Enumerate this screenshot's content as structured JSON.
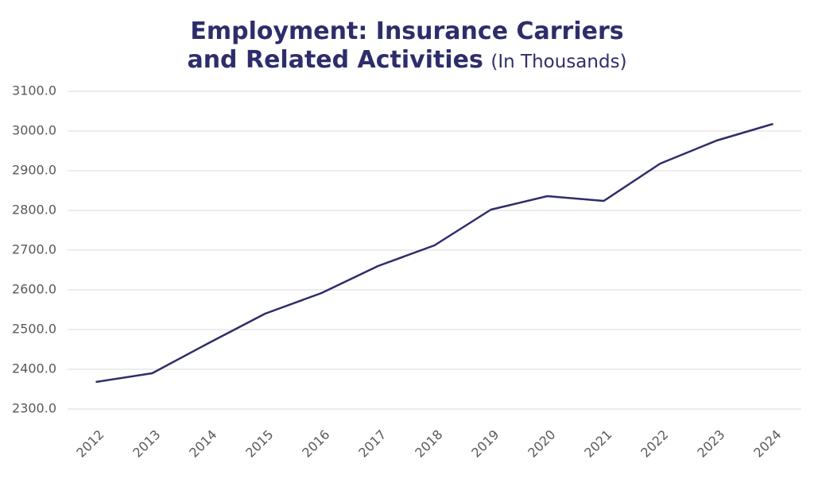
{
  "chart_data": {
    "type": "line",
    "title": "Employment: Insurance Carriers and Related Activities",
    "subtitle": "(In Thousands)",
    "categories": [
      "2012",
      "2013",
      "2014",
      "2015",
      "2016",
      "2017",
      "2018",
      "2019",
      "2020",
      "2021",
      "2022",
      "2023",
      "2024"
    ],
    "values": [
      2368,
      2390,
      2466,
      2540,
      2592,
      2660,
      2712,
      2802,
      2836,
      2824,
      2918,
      2976,
      3018
    ],
    "color": "#2e2d6b",
    "ylim": [
      2300,
      3100
    ],
    "yticks": [
      {
        "value": 2300,
        "label": "2300.0"
      },
      {
        "value": 2400,
        "label": "2400.0"
      },
      {
        "value": 2500,
        "label": "2500.0"
      },
      {
        "value": 2600,
        "label": "2600.0"
      },
      {
        "value": 2700,
        "label": "2700.0"
      },
      {
        "value": 2800,
        "label": "2800.0"
      },
      {
        "value": 2900,
        "label": "2900.0"
      },
      {
        "value": 3000,
        "label": "3000.0"
      },
      {
        "value": 3100,
        "label": "3100.0"
      }
    ],
    "grid": true
  }
}
